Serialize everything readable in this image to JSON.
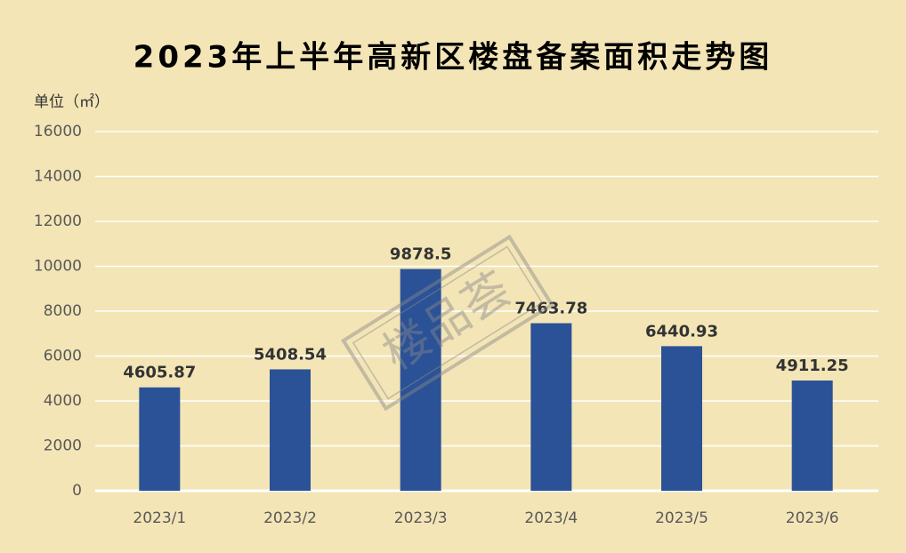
{
  "chart_data": {
    "type": "bar",
    "title": "2023年上半年高新区楼盘备案面积走势图",
    "y_label": "单位（㎡）",
    "watermark": "楼品荟",
    "categories": [
      "2023/1",
      "2023/2",
      "2023/3",
      "2023/4",
      "2023/5",
      "2023/6"
    ],
    "values": [
      4605.87,
      5408.54,
      9878.5,
      7463.78,
      6440.93,
      4911.25
    ],
    "color": "#2b5297",
    "ylim": [
      0,
      16000
    ],
    "yticks": [
      0,
      2000,
      4000,
      6000,
      8000,
      10000,
      12000,
      14000,
      16000
    ],
    "grid": true
  }
}
